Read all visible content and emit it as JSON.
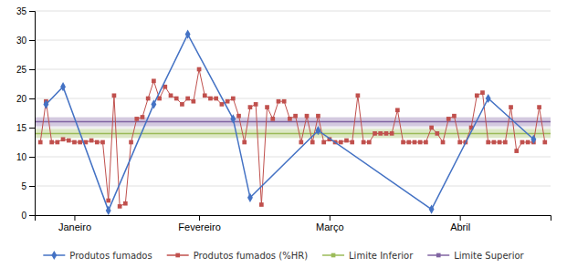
{
  "chart_data": {
    "type": "line",
    "xlim": [
      0,
      91
    ],
    "xticks": [
      {
        "value": 7,
        "label": "Janeiro"
      },
      {
        "value": 29,
        "label": "Fevereiro"
      },
      {
        "value": 52,
        "label": "Março"
      },
      {
        "value": 75,
        "label": "Abril"
      }
    ],
    "ylim": [
      0,
      35
    ],
    "yticks": [
      0,
      5,
      10,
      15,
      20,
      25,
      30,
      35
    ],
    "grid": true,
    "legend": "bottom",
    "series": [
      {
        "name": "Produtos fumados",
        "color": "#4472C4",
        "marker": "diamond",
        "x": [
          2,
          5,
          13,
          21,
          27,
          35,
          38,
          50,
          70,
          80,
          88
        ],
        "values": [
          19,
          22,
          0.8,
          19,
          31,
          16.5,
          3,
          14.5,
          1,
          20,
          13
        ]
      },
      {
        "name": "Produtos fumados (%HR)",
        "color": "#C0504D",
        "marker": "square",
        "x": [
          1,
          2,
          3,
          4,
          5,
          6,
          7,
          8,
          9,
          10,
          11,
          12,
          13,
          14,
          15,
          16,
          17,
          18,
          19,
          20,
          21,
          22,
          23,
          24,
          25,
          26,
          27,
          28,
          29,
          30,
          31,
          32,
          33,
          34,
          35,
          36,
          37,
          38,
          39,
          40,
          41,
          42,
          43,
          44,
          45,
          46,
          47,
          48,
          49,
          50,
          51,
          52,
          53,
          54,
          55,
          56,
          57,
          58,
          59,
          60,
          61,
          62,
          63,
          64,
          65,
          66,
          67,
          68,
          69,
          70,
          71,
          72,
          73,
          74,
          75,
          76,
          77,
          78,
          79,
          80,
          81,
          82,
          83,
          84,
          85,
          86,
          87,
          88,
          89,
          90
        ],
        "values": [
          12.5,
          19.5,
          12.5,
          12.5,
          13.0,
          12.8,
          12.5,
          12.5,
          12.5,
          12.8,
          12.5,
          12.5,
          2.5,
          20.5,
          1.5,
          2.0,
          12.5,
          16.5,
          16.8,
          20.0,
          23.0,
          20.0,
          22.0,
          20.5,
          20.0,
          19.0,
          20.0,
          19.5,
          25.0,
          20.5,
          20.0,
          20.0,
          19.0,
          19.5,
          20.0,
          17.0,
          12.5,
          18.5,
          19.0,
          1.8,
          18.5,
          16.5,
          19.5,
          19.5,
          16.5,
          17.0,
          12.5,
          17.0,
          12.5,
          17.0,
          12.5,
          13.0,
          12.5,
          12.5,
          12.8,
          12.5,
          20.5,
          12.5,
          12.5,
          14.0,
          14.0,
          14.0,
          14.0,
          18.0,
          12.5,
          12.5,
          12.5,
          12.5,
          12.5,
          15.0,
          14.0,
          12.5,
          16.5,
          17.0,
          12.5,
          12.5,
          15.0,
          20.5,
          21.0,
          12.5,
          12.5,
          12.5,
          12.5,
          18.5,
          11.0,
          12.5,
          12.5,
          12.5,
          18.5,
          12.5
        ]
      },
      {
        "name": "Limite Inferior",
        "color": "#9BBB59",
        "type": "hline",
        "marker": "square",
        "values": [
          14
        ]
      },
      {
        "name": "Limite Superior",
        "color": "#8064A2",
        "type": "hline",
        "marker": "square",
        "values": [
          16
        ]
      }
    ]
  }
}
